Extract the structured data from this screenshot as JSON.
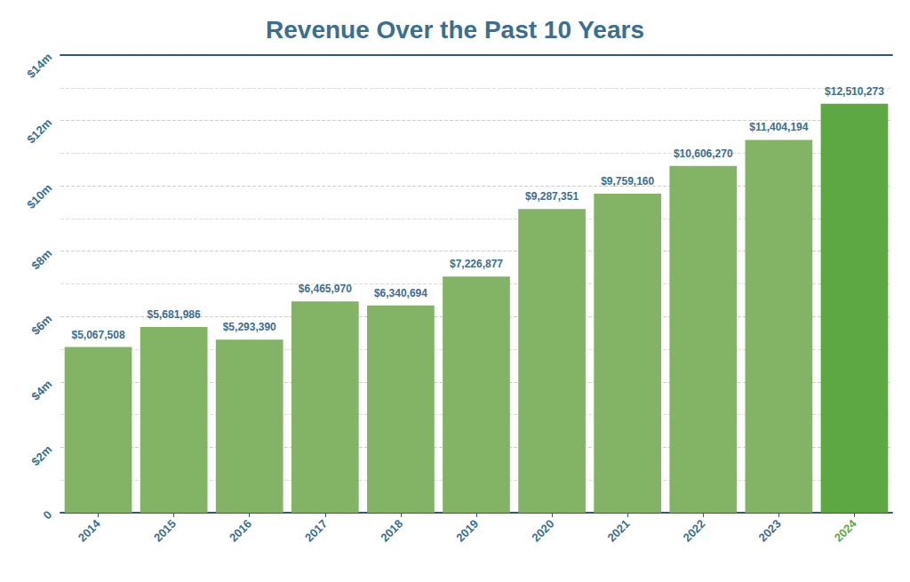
{
  "chart_data": {
    "type": "bar",
    "title": "Revenue Over the Past 10 Years",
    "categories": [
      "2014",
      "2015",
      "2016",
      "2017",
      "2018",
      "2019",
      "2020",
      "2021",
      "2022",
      "2023",
      "2024"
    ],
    "values": [
      5067508,
      5681986,
      5293390,
      6465970,
      6340694,
      7226877,
      9287351,
      9759160,
      10606270,
      11404194,
      12510273
    ],
    "value_labels": [
      "$5,067,508",
      "$5,681,986",
      "$5,293,390",
      "$6,465,970",
      "$6,340,694",
      "$7,226,877",
      "$9,287,351",
      "$9,759,160",
      "$10,606,270",
      "$11,404,194",
      "$12,510,273"
    ],
    "colors": [
      "#83b466",
      "#83b466",
      "#83b466",
      "#83b466",
      "#83b466",
      "#83b466",
      "#83b466",
      "#83b466",
      "#83b466",
      "#83b466",
      "#5ea843"
    ],
    "ylim": [
      0,
      14000000
    ],
    "yticks": [
      0,
      {
        "value": 2000000,
        "label": "$2m"
      },
      {
        "value": 4000000,
        "label": "$4m"
      },
      {
        "value": 6000000,
        "label": "$6m"
      },
      {
        "value": 8000000,
        "label": "$8m"
      },
      {
        "value": 10000000,
        "label": "$10m"
      },
      {
        "value": 12000000,
        "label": "$12m"
      },
      {
        "value": 14000000,
        "label": "$14m"
      }
    ],
    "grid": true,
    "data_labels": true
  }
}
